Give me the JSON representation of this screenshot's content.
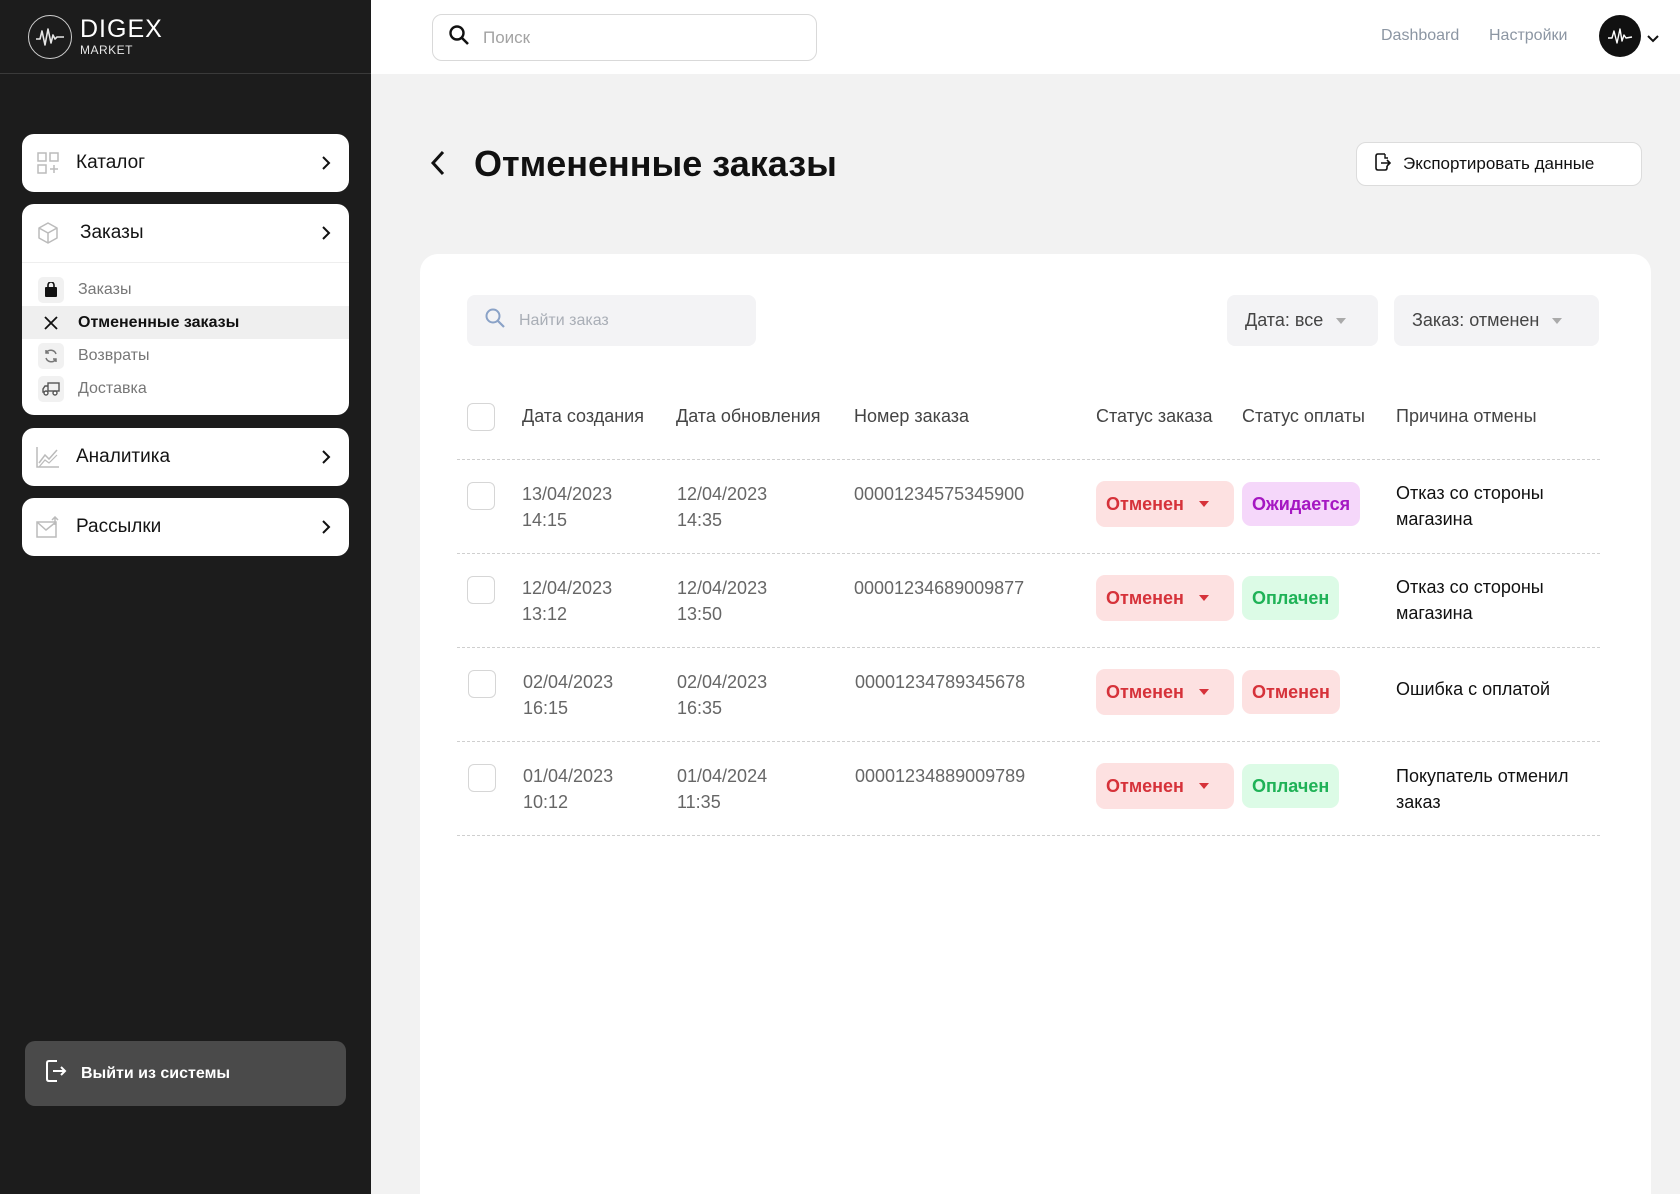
{
  "brand": {
    "name": "DIGEX",
    "sub": "MARKET"
  },
  "sidebar": {
    "catalog": "Каталог",
    "orders": "Заказы",
    "orders_sub": [
      {
        "label": "Заказы",
        "icon": "bag-icon"
      },
      {
        "label": "Отмененные заказы",
        "icon": "close-icon"
      },
      {
        "label": "Возвраты",
        "icon": "refresh-icon"
      },
      {
        "label": "Доставка",
        "icon": "truck-icon"
      }
    ],
    "analytics": "Аналитика",
    "mailings": "Рассылки",
    "logout": "Выйти из системы"
  },
  "topbar": {
    "search_placeholder": "Поиск",
    "link_dashboard": "Dashboard",
    "link_settings": "Настройки"
  },
  "page": {
    "title": "Отмененные заказы",
    "export_label": "Экспортировать данные"
  },
  "filters": {
    "search_placeholder": "Найти заказ",
    "date": "Дата: все",
    "order": "Заказ: отменен"
  },
  "table": {
    "headers": [
      "Дата создания",
      "Дата обновления",
      "Номер заказа",
      "Статус заказа",
      "Статус оплаты",
      "Причина отмены"
    ],
    "rows": [
      {
        "created_date": "13/04/2023",
        "created_time": "14:15",
        "updated_date": "12/04/2023",
        "updated_time": "14:35",
        "number": "00001234575345900",
        "status": "Отменен",
        "payment": "Ожидается",
        "reason": "Отказ со стороны магазина"
      },
      {
        "created_date": "12/04/2023",
        "created_time": "13:12",
        "updated_date": "12/04/2023",
        "updated_time": "13:50",
        "number": "00001234689009877",
        "status": "Отменен",
        "payment": "Оплачен",
        "reason": "Отказ со стороны магазина"
      },
      {
        "created_date": "02/04/2023",
        "created_time": "16:15",
        "updated_date": "02/04/2023",
        "updated_time": "16:35",
        "number": "00001234789345678",
        "status": "Отменен",
        "payment": "Отменен",
        "reason": "Ошибка с оплатой"
      },
      {
        "created_date": "01/04/2023",
        "created_time": "10:12",
        "updated_date": "01/04/2024",
        "updated_time": "11:35",
        "number": "00001234889009789",
        "status": "Отменен",
        "payment": "Оплачен",
        "reason": "Покупатель отменил заказ"
      }
    ]
  },
  "colors": {
    "sidebar_bg": "#1c1c1c",
    "status_cancelled_bg": "#fde1e1",
    "status_cancelled_text": "#d6323a",
    "payment_pending_bg": "#f5d7fa",
    "payment_pending_text": "#a517c2",
    "payment_paid_bg": "#dcfbe6",
    "payment_paid_text": "#1fb257"
  }
}
